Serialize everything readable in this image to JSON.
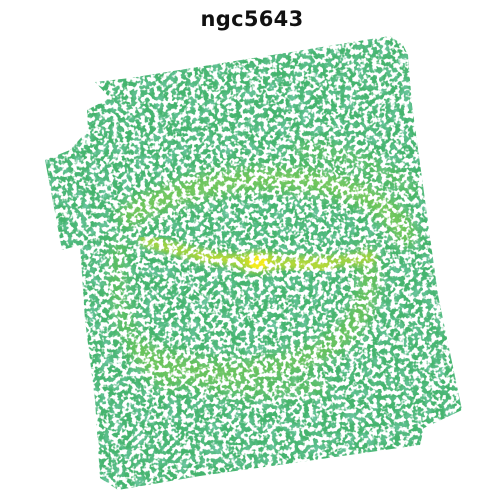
{
  "figure": {
    "title": "ngc5643"
  },
  "image": {
    "subject": "galaxy-intensity-map",
    "colormap_colors": {
      "low": "#2e9e8a",
      "mid_low": "#3cb573",
      "mid": "#6cc85a",
      "mid_high": "#a6d43f",
      "high": "#e3e31c",
      "background": "#ffffff"
    }
  }
}
